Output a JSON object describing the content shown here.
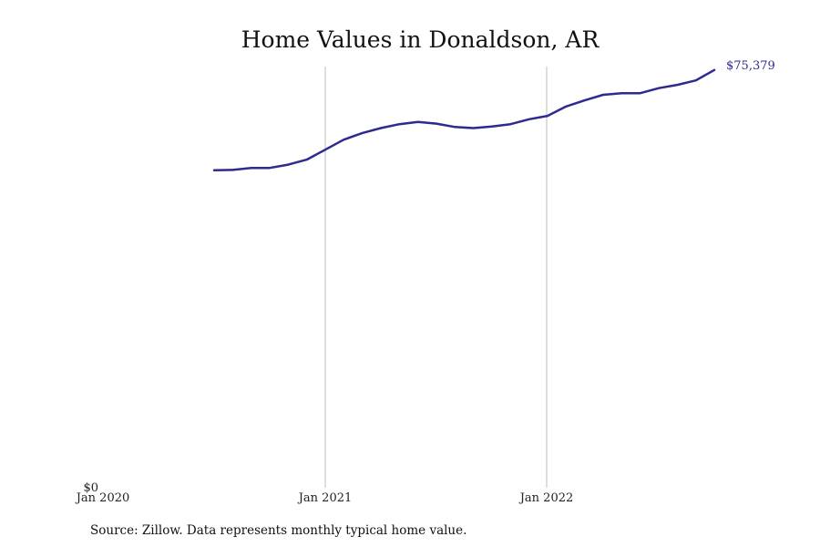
{
  "chart_data": {
    "type": "line",
    "title": "Home Values in Donaldson, AR",
    "xlabel": "",
    "ylabel": "",
    "x_ticks": [
      "Jan 2020",
      "Jan 2021",
      "Jan 2022"
    ],
    "y_ticks": [
      "$0"
    ],
    "ylim": [
      0,
      76000
    ],
    "grid": "vertical lines at Jan 2021 and Jan 2022",
    "legend": "none",
    "end_label": "$75,379",
    "series": [
      {
        "color": "#2e2a8f",
        "points": [
          {
            "x": "2020-07",
            "y": 57300
          },
          {
            "x": "2020-08",
            "y": 57350
          },
          {
            "x": "2020-09",
            "y": 57700
          },
          {
            "x": "2020-10",
            "y": 57700
          },
          {
            "x": "2020-11",
            "y": 58300
          },
          {
            "x": "2020-12",
            "y": 59200
          },
          {
            "x": "2021-01",
            "y": 61000
          },
          {
            "x": "2021-02",
            "y": 62800
          },
          {
            "x": "2021-03",
            "y": 64000
          },
          {
            "x": "2021-04",
            "y": 64900
          },
          {
            "x": "2021-05",
            "y": 65600
          },
          {
            "x": "2021-06",
            "y": 66000
          },
          {
            "x": "2021-07",
            "y": 65700
          },
          {
            "x": "2021-08",
            "y": 65100
          },
          {
            "x": "2021-09",
            "y": 64900
          },
          {
            "x": "2021-10",
            "y": 65200
          },
          {
            "x": "2021-11",
            "y": 65600
          },
          {
            "x": "2021-12",
            "y": 66500
          },
          {
            "x": "2022-01",
            "y": 67100
          },
          {
            "x": "2022-02",
            "y": 68800
          },
          {
            "x": "2022-03",
            "y": 69900
          },
          {
            "x": "2022-04",
            "y": 70900
          },
          {
            "x": "2022-05",
            "y": 71200
          },
          {
            "x": "2022-06",
            "y": 71200
          },
          {
            "x": "2022-07",
            "y": 72100
          },
          {
            "x": "2022-08",
            "y": 72700
          },
          {
            "x": "2022-09",
            "y": 73500
          },
          {
            "x": "2022-10",
            "y": 75379
          }
        ]
      }
    ]
  },
  "footer": {
    "source": "Source: Zillow. Data represents monthly typical home value."
  }
}
